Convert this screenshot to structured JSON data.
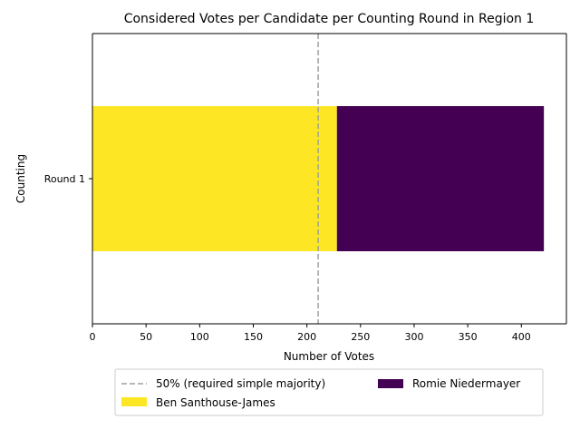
{
  "chart_data": {
    "type": "bar",
    "orientation": "horizontal",
    "stacked": true,
    "title": "Considered Votes per Candidate per Counting Round in Region 1",
    "xlabel": "Number of Votes",
    "ylabel": "Counting",
    "categories": [
      "Round 1"
    ],
    "xlim": [
      0,
      442
    ],
    "xticks": [
      0,
      50,
      100,
      150,
      200,
      250,
      300,
      350,
      400
    ],
    "series": [
      {
        "name": "Ben Santhouse-James",
        "values": [
          228
        ],
        "color": "#fde725"
      },
      {
        "name": "Romie Niedermayer",
        "values": [
          193
        ],
        "color": "#440154"
      }
    ],
    "reference_line": {
      "label": "50% (required simple majority)",
      "value": 210.5,
      "color": "#a0a0a0",
      "style": "dashed"
    },
    "grid": false,
    "legend_position": "bottom-center"
  }
}
